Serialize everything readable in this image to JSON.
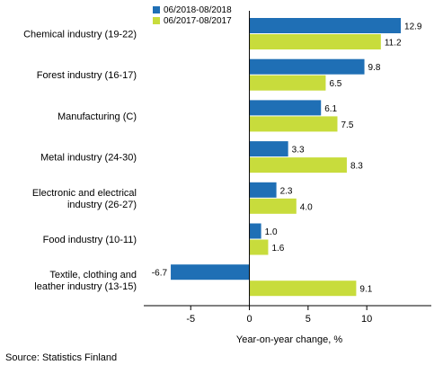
{
  "chart_data": {
    "type": "bar",
    "orientation": "horizontal",
    "categories": [
      [
        "Chemical industry (19-22)"
      ],
      [
        "Forest industry (16-17)"
      ],
      [
        "Manufacturing (C)"
      ],
      [
        "Metal industry (24-30)"
      ],
      [
        "Electronic and electrical",
        "industry (26-27)"
      ],
      [
        "Food industry (10-11)"
      ],
      [
        "Textile, clothing and",
        "leather industry (13-15)"
      ]
    ],
    "series": [
      {
        "name": "06/2018-08/2018",
        "color": "#1f6fb5",
        "values": [
          12.9,
          9.8,
          6.1,
          3.3,
          2.3,
          1.0,
          -6.7
        ]
      },
      {
        "name": "06/2017-08/2017",
        "color": "#c8dc3c",
        "values": [
          11.2,
          6.5,
          7.5,
          8.3,
          4.0,
          1.6,
          9.1
        ]
      }
    ],
    "value_labels": [
      [
        "12.9",
        "9.8",
        "6.1",
        "3.3",
        "2.3",
        "1.0",
        "-6.7"
      ],
      [
        "11.2",
        "6.5",
        "7.5",
        "8.3",
        "4.0",
        "1.6",
        "9.1"
      ]
    ],
    "xlim": [
      -9,
      15.5
    ],
    "xticks": [
      -5,
      0,
      5,
      10
    ],
    "xlabel": "Year-on-year change, %",
    "legend": "top-left",
    "grid": false
  },
  "source": "Source: Statistics Finland"
}
